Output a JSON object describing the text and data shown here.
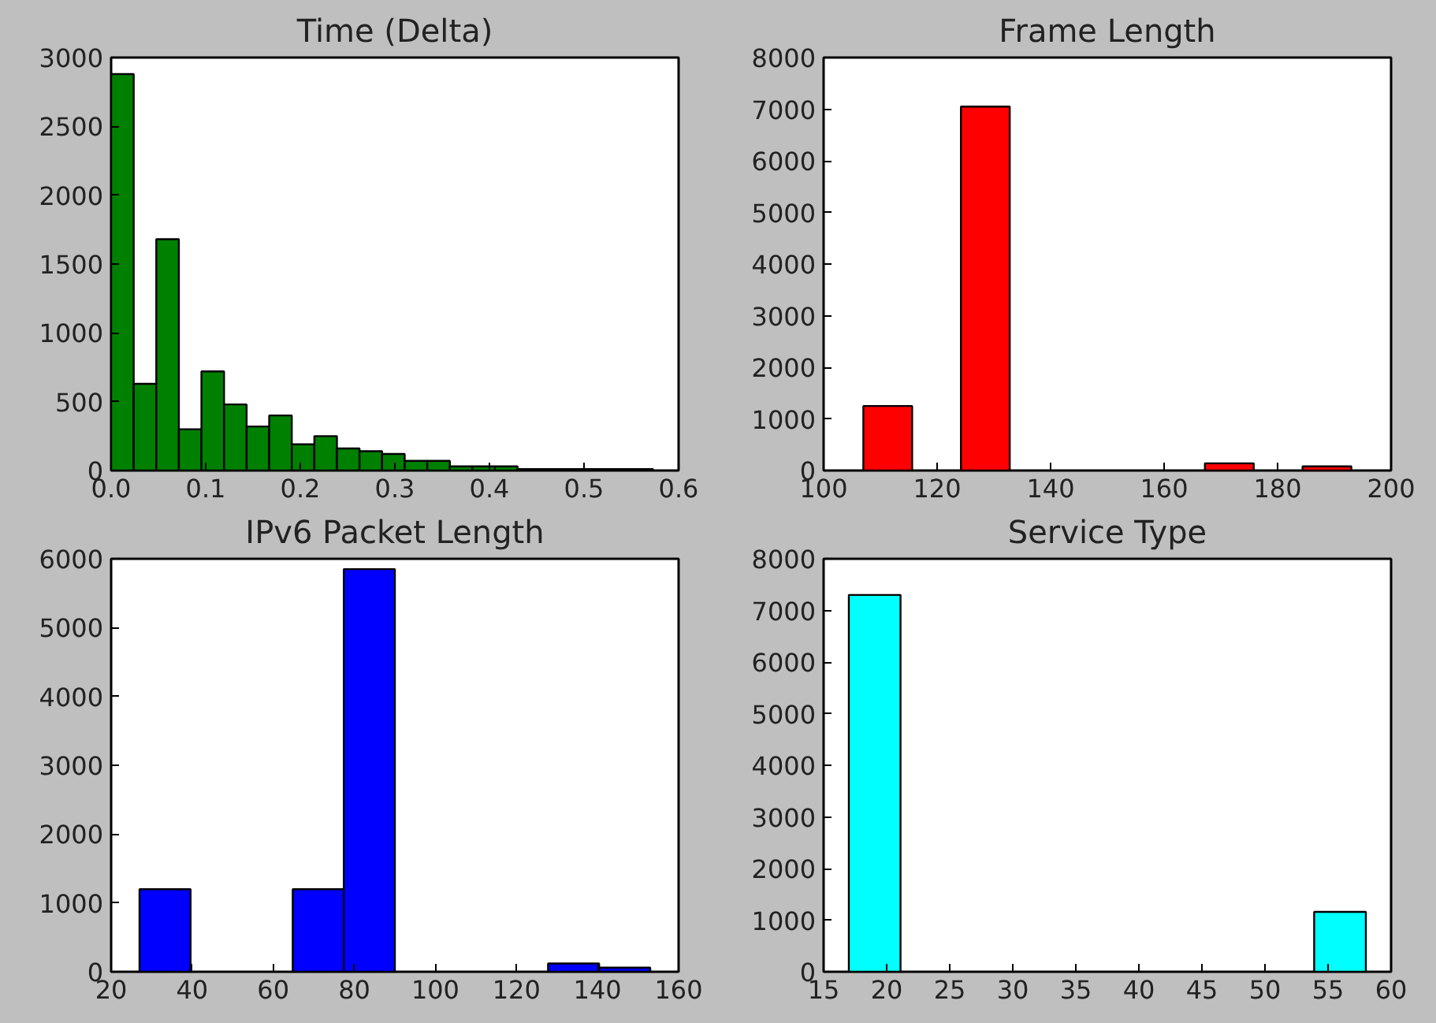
{
  "chart_data": [
    {
      "type": "histogram",
      "title": "Time (Delta)",
      "color": "#008000",
      "bins": [
        0,
        0.02388,
        0.04775,
        0.07163,
        0.0955,
        0.11938,
        0.14325,
        0.16713,
        0.191,
        0.21488,
        0.23875,
        0.26263,
        0.2865,
        0.31038,
        0.33425,
        0.35813,
        0.382,
        0.40588,
        0.42975,
        0.45363,
        0.4775,
        0.50138,
        0.52525,
        0.54913,
        0.573
      ],
      "values": [
        2880,
        630,
        1680,
        300,
        720,
        480,
        320,
        400,
        190,
        250,
        160,
        140,
        120,
        70,
        70,
        30,
        30,
        30,
        10,
        10,
        10,
        10,
        10,
        10
      ],
      "xlim": [
        0,
        0.6
      ],
      "xticks": [
        {
          "value": 0,
          "label": "0.0"
        },
        0.1,
        0.2,
        0.3,
        0.4,
        0.5,
        0.6
      ],
      "ylim": [
        0,
        3000
      ],
      "yticks": [
        0,
        500,
        1000,
        1500,
        2000,
        2500,
        3000
      ],
      "grid": false
    },
    {
      "type": "histogram",
      "title": "Frame Length",
      "color": "#ff0000",
      "bins": [
        107,
        115.6,
        124.2,
        132.8,
        141.4,
        150,
        158.6,
        167.2,
        175.8,
        184.4,
        193
      ],
      "values": [
        1250,
        0,
        7050,
        0,
        0,
        0,
        0,
        140,
        0,
        80
      ],
      "xlim": [
        100,
        200
      ],
      "xticks": [
        100,
        120,
        140,
        160,
        180,
        200
      ],
      "ylim": [
        0,
        8000
      ],
      "yticks": [
        0,
        1000,
        2000,
        3000,
        4000,
        5000,
        6000,
        7000,
        8000
      ],
      "grid": false
    },
    {
      "type": "histogram",
      "title": "IPv6 Packet Length",
      "color": "#0000ff",
      "bins": [
        27,
        39.6,
        52.2,
        64.8,
        77.4,
        90,
        102.6,
        115.2,
        127.8,
        140.4,
        153
      ],
      "values": [
        1200,
        0,
        0,
        1200,
        5850,
        0,
        0,
        0,
        120,
        60
      ],
      "xlim": [
        20,
        160
      ],
      "xticks": [
        20,
        40,
        60,
        80,
        100,
        120,
        140,
        160
      ],
      "ylim": [
        0,
        6000
      ],
      "yticks": [
        0,
        1000,
        2000,
        3000,
        4000,
        5000,
        6000
      ],
      "grid": false
    },
    {
      "type": "histogram",
      "title": "Service Type",
      "color": "#00ffff",
      "bins": [
        17,
        21.1,
        25.2,
        29.3,
        33.4,
        37.5,
        41.6,
        45.7,
        49.8,
        53.9,
        58
      ],
      "values": [
        7300,
        0,
        0,
        0,
        0,
        0,
        0,
        0,
        0,
        1160
      ],
      "xlim": [
        15,
        60
      ],
      "xticks": [
        15,
        20,
        25,
        30,
        35,
        40,
        45,
        50,
        55,
        60
      ],
      "ylim": [
        0,
        8000
      ],
      "yticks": [
        0,
        1000,
        2000,
        3000,
        4000,
        5000,
        6000,
        7000,
        8000
      ],
      "grid": false
    }
  ]
}
